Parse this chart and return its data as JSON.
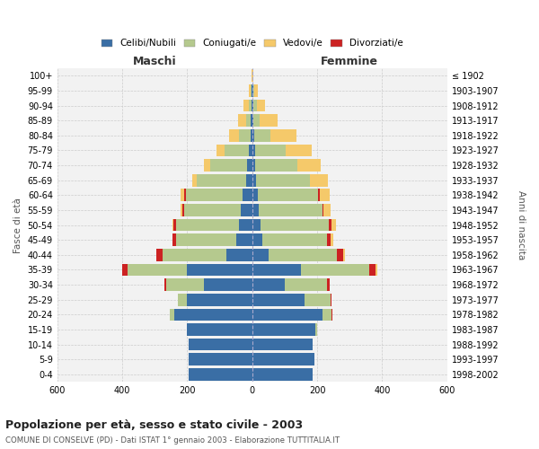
{
  "age_groups": [
    "0-4",
    "5-9",
    "10-14",
    "15-19",
    "20-24",
    "25-29",
    "30-34",
    "35-39",
    "40-44",
    "45-49",
    "50-54",
    "55-59",
    "60-64",
    "65-69",
    "70-74",
    "75-79",
    "80-84",
    "85-89",
    "90-94",
    "95-99",
    "100+"
  ],
  "birth_years": [
    "1998-2002",
    "1993-1997",
    "1988-1992",
    "1983-1987",
    "1978-1982",
    "1973-1977",
    "1968-1972",
    "1963-1967",
    "1958-1962",
    "1953-1957",
    "1948-1952",
    "1943-1947",
    "1938-1942",
    "1933-1937",
    "1928-1932",
    "1923-1927",
    "1918-1922",
    "1913-1917",
    "1908-1912",
    "1903-1907",
    "≤ 1902"
  ],
  "colors": {
    "celibe": "#3A6EA5",
    "coniugato": "#B5C98E",
    "vedovo": "#F5C96A",
    "divorziato": "#CC2222"
  },
  "maschi": {
    "celibe": [
      195,
      195,
      195,
      200,
      240,
      200,
      150,
      200,
      80,
      50,
      40,
      35,
      30,
      20,
      15,
      10,
      5,
      5,
      3,
      2,
      0
    ],
    "coniugato": [
      0,
      0,
      0,
      2,
      15,
      30,
      115,
      185,
      195,
      185,
      195,
      175,
      175,
      150,
      115,
      75,
      35,
      15,
      8,
      3,
      0
    ],
    "vedovo": [
      0,
      0,
      0,
      0,
      0,
      0,
      0,
      0,
      0,
      0,
      2,
      5,
      10,
      15,
      20,
      25,
      30,
      25,
      15,
      5,
      1
    ],
    "divorziato": [
      0,
      0,
      0,
      0,
      0,
      0,
      5,
      15,
      20,
      10,
      8,
      5,
      5,
      0,
      0,
      0,
      0,
      0,
      0,
      0,
      0
    ]
  },
  "femmine": {
    "nubile": [
      185,
      190,
      185,
      195,
      215,
      160,
      100,
      150,
      50,
      30,
      25,
      20,
      18,
      12,
      10,
      8,
      5,
      4,
      3,
      2,
      0
    ],
    "coniugata": [
      0,
      0,
      0,
      5,
      30,
      80,
      130,
      210,
      210,
      200,
      210,
      195,
      185,
      165,
      130,
      95,
      50,
      20,
      10,
      5,
      0
    ],
    "vedova": [
      0,
      0,
      0,
      0,
      0,
      0,
      0,
      5,
      5,
      8,
      15,
      20,
      30,
      55,
      70,
      80,
      80,
      55,
      25,
      10,
      2
    ],
    "divorziata": [
      0,
      0,
      0,
      0,
      2,
      5,
      8,
      20,
      20,
      10,
      8,
      5,
      5,
      0,
      0,
      0,
      0,
      0,
      0,
      0,
      0
    ]
  },
  "title": "Popolazione per età, sesso e stato civile - 2003",
  "subtitle": "COMUNE DI CONSELVE (PD) - Dati ISTAT 1° gennaio 2003 - Elaborazione TUTTITALIA.IT",
  "xlabel_left": "Maschi",
  "xlabel_right": "Femmine",
  "ylabel_left": "Fasce di età",
  "ylabel_right": "Anni di nascita",
  "xmax": 600,
  "legend_labels": [
    "Celibi/Nubili",
    "Coniugati/e",
    "Vedovi/e",
    "Divorziati/e"
  ],
  "bg_color": "#FFFFFF",
  "grid_color": "#CCCCCC"
}
